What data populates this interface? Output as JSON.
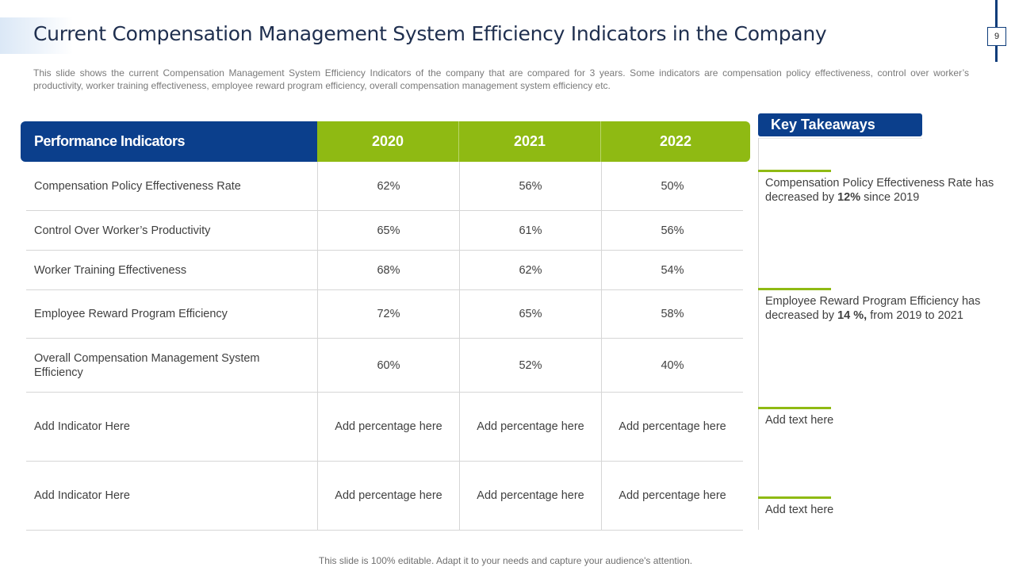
{
  "slide": {
    "title": "Current Compensation Management System Efficiency Indicators in the Company",
    "page_number": "9",
    "description": "This slide shows the current Compensation Management System Efficiency Indicators of the company that are compared for 3 years. Some indicators are compensation policy effectiveness, control over worker’s productivity, worker training effectiveness, employee reward program efficiency, overall compensation management system efficiency etc.",
    "footer": "This slide is 100% editable. Adapt it to your needs and capture your audience's attention."
  },
  "table": {
    "header": {
      "indicator": "Performance Indicators",
      "years": [
        "2020",
        "2021",
        "2022"
      ]
    },
    "rows": [
      {
        "indicator": "Compensation Policy Effectiveness Rate",
        "values": [
          "62%",
          "56%",
          "50%"
        ]
      },
      {
        "indicator": "Control Over Worker’s Productivity",
        "values": [
          "65%",
          "61%",
          "56%"
        ]
      },
      {
        "indicator": "Worker Training Effectiveness",
        "values": [
          "68%",
          "62%",
          "54%"
        ]
      },
      {
        "indicator": "Employee Reward Program Efficiency",
        "values": [
          "72%",
          "65%",
          "58%"
        ]
      },
      {
        "indicator": "Overall Compensation Management System Efficiency",
        "values": [
          "60%",
          "52%",
          "40%"
        ]
      },
      {
        "indicator": "Add Indicator Here",
        "values": [
          "Add percentage here",
          "Add percentage here",
          "Add percentage here"
        ]
      },
      {
        "indicator": "Add Indicator Here",
        "values": [
          "Add percentage here",
          "Add percentage here",
          "Add percentage here"
        ]
      }
    ]
  },
  "takeaways": {
    "title": "Key Takeaways",
    "items": [
      {
        "before": "Compensation Policy Effectiveness Rate has decreased by ",
        "bold": "12%",
        "after": " since 2019"
      },
      {
        "before": "Employee Reward Program Efficiency has decreased by ",
        "bold": "14 %,",
        "after": " from 2019 to 2021"
      },
      {
        "before": "Add text here",
        "bold": "",
        "after": ""
      },
      {
        "before": "Add text here",
        "bold": "",
        "after": ""
      }
    ]
  },
  "colors": {
    "navy": "#0b3f8c",
    "green": "#8fba13",
    "title_text": "#1f2f4f"
  }
}
